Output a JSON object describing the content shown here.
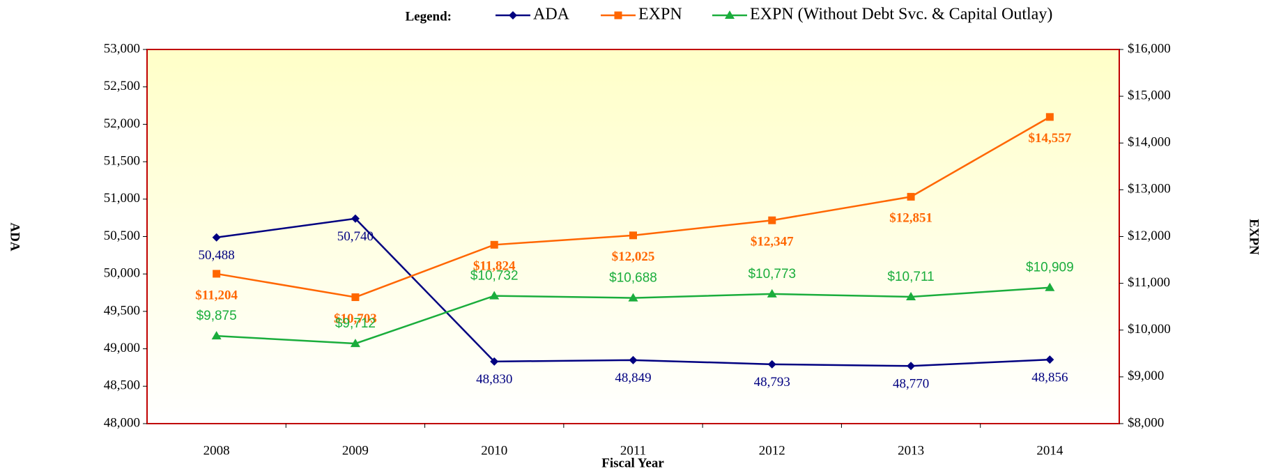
{
  "chart_data": {
    "type": "line",
    "legend_title": "Legend:",
    "xlabel": "Fiscal Year",
    "ylabel": "ADA",
    "y2label": "EXPN",
    "categories": [
      "2008",
      "2009",
      "2010",
      "2011",
      "2012",
      "2013",
      "2014"
    ],
    "ylim": [
      48000,
      53000
    ],
    "yticks": [
      {
        "value": 48000,
        "label": "48,000"
      },
      {
        "value": 48500,
        "label": "48,500"
      },
      {
        "value": 49000,
        "label": "49,000"
      },
      {
        "value": 49500,
        "label": "49,500"
      },
      {
        "value": 50000,
        "label": "50,000"
      },
      {
        "value": 50500,
        "label": "50,500"
      },
      {
        "value": 51000,
        "label": "51,000"
      },
      {
        "value": 51500,
        "label": "51,500"
      },
      {
        "value": 52000,
        "label": "52,000"
      },
      {
        "value": 52500,
        "label": "52,500"
      },
      {
        "value": 53000,
        "label": "53,000"
      }
    ],
    "y2lim": [
      8000,
      16000
    ],
    "y2ticks": [
      {
        "value": 8000,
        "label": "$8,000"
      },
      {
        "value": 9000,
        "label": "$9,000"
      },
      {
        "value": 10000,
        "label": "$10,000"
      },
      {
        "value": 11000,
        "label": "$11,000"
      },
      {
        "value": 12000,
        "label": "$12,000"
      },
      {
        "value": 13000,
        "label": "$13,000"
      },
      {
        "value": 14000,
        "label": "$14,000"
      },
      {
        "value": 15000,
        "label": "$15,000"
      },
      {
        "value": 16000,
        "label": "$16,000"
      }
    ],
    "series": [
      {
        "name": "ADA",
        "color": "#000080",
        "marker": "diamond",
        "values": [
          50488,
          50740,
          48830,
          48849,
          48793,
          48770,
          48856
        ],
        "value_labels": [
          "50,488",
          "50,740",
          "48,830",
          "48,849",
          "48,793",
          "48,770",
          "48,856"
        ]
      },
      {
        "name": "EXPN",
        "color": "#ff6600",
        "marker": "square",
        "axis": "y2",
        "values": [
          11204,
          10703,
          11824,
          12025,
          12347,
          12851,
          14557
        ],
        "value_labels": [
          "$11,204",
          "$10,703",
          "$11,824",
          "$12,025",
          "$12,347",
          "$12,851",
          "$14,557"
        ]
      },
      {
        "name": "EXPN (Without Debt Svc. & Capital Outlay)",
        "color": "#1aad3c",
        "marker": "triangle",
        "axis": "y2",
        "values": [
          9875,
          9712,
          10732,
          10688,
          10773,
          10711,
          10909
        ],
        "value_labels": [
          "$9,875",
          "$9,712",
          "$10,732",
          "$10,688",
          "$10,773",
          "$10,711",
          "$10,909"
        ]
      }
    ]
  }
}
